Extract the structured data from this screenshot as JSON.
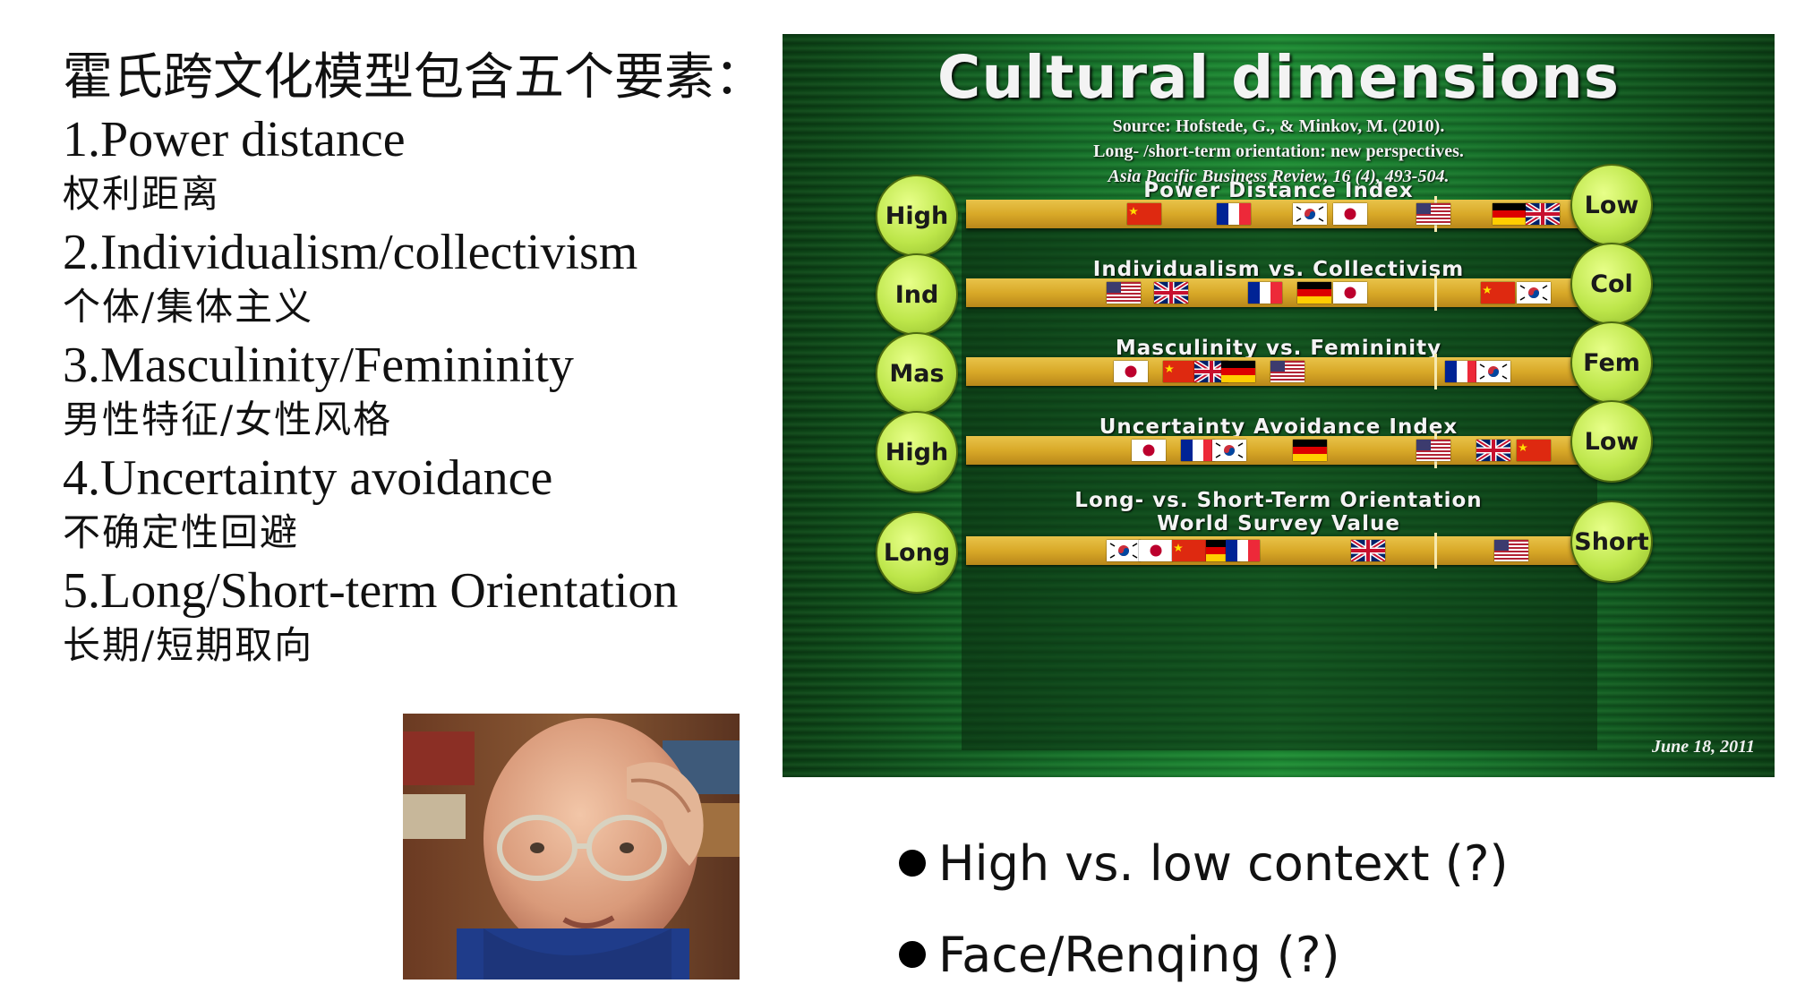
{
  "left": {
    "intro": "霍氏跨文化模型包含五个要素：",
    "items": [
      {
        "title": "1.Power distance",
        "cn": "权利距离"
      },
      {
        "title": "2.Individualism/collectivism",
        "cn": "个体/集体主义"
      },
      {
        "title": "3.Masculinity/Femininity",
        "cn": "男性特征/女性风格"
      },
      {
        "title": "4.Uncertainty avoidance",
        "cn": "不确定性回避"
      },
      {
        "title": "5.Long/Short-term Orientation",
        "cn": "长期/短期取向"
      }
    ]
  },
  "graphic": {
    "title": "Cultural dimensions",
    "source1": "Source: Hofstede, G., & Minkov, M. (2010).",
    "source2": "Long- /short-term orientation: new perspectives.",
    "source3": "Asia Pacific Business Review, 16 (4), 493-504.",
    "signature_date": "June 18, 2011",
    "dimensions": [
      {
        "title": "Power Distance Index",
        "title2": "",
        "left": "High",
        "right": "Low",
        "flags": [
          "cn",
          "fr",
          "kr",
          "jp",
          "us",
          "de",
          "gb"
        ]
      },
      {
        "title": "Individualism vs. Collectivism",
        "title2": "",
        "left": "Ind",
        "right": "Col",
        "flags": [
          "us",
          "gb",
          "fr",
          "de",
          "jp",
          "cn",
          "kr"
        ]
      },
      {
        "title": "Masculinity vs. Femininity",
        "title2": "",
        "left": "Mas",
        "right": "Fem",
        "flags": [
          "jp",
          "cn",
          "gb",
          "de",
          "us",
          "fr",
          "kr"
        ]
      },
      {
        "title": "Uncertainty Avoidance Index",
        "title2": "",
        "left": "High",
        "right": "Low",
        "flags": [
          "jp",
          "fr",
          "kr",
          "de",
          "us",
          "gb",
          "cn"
        ]
      },
      {
        "title": "Long- vs. Short-Term Orientation",
        "title2": "World Survey Value",
        "left": "Long",
        "right": "Short",
        "flags": [
          "kr",
          "jp",
          "cn",
          "de",
          "fr",
          "gb",
          "us"
        ]
      }
    ]
  },
  "bullets": [
    "High vs. low context (?)",
    "Face/Renqing (?)"
  ]
}
